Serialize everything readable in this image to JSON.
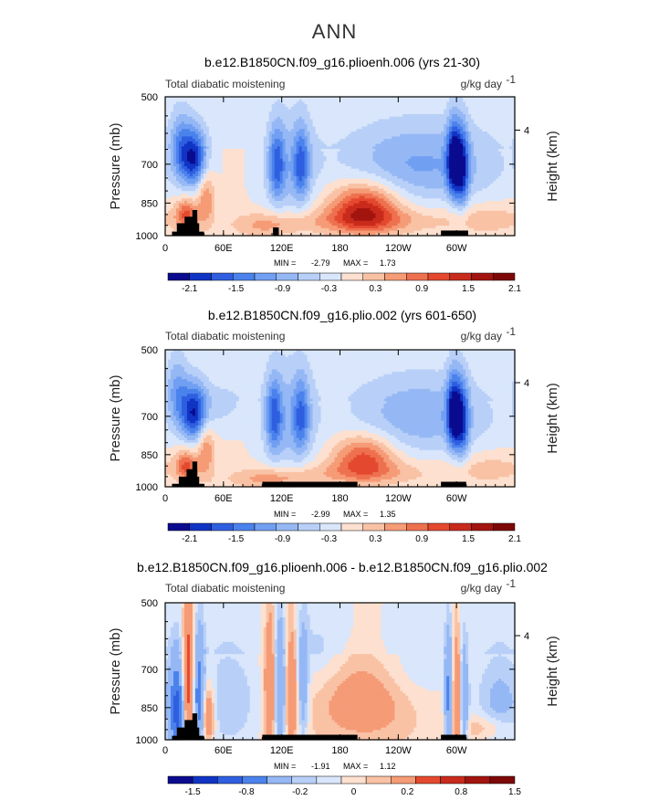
{
  "page": {
    "title": "ANN"
  },
  "chart_data": [
    {
      "type": "heatmap",
      "title": "b.e12.B1850CN.f09_g16.plioenh.006 (yrs 21-30)",
      "subtitle_left": "Total diabatic moistening",
      "units": "g/kg day",
      "units_exp": "-1",
      "ylabel": "Pressure (mb)",
      "ylabel_right": "Height (km)",
      "ylim": [
        1000,
        500
      ],
      "yticks": [
        "500",
        "700",
        "850",
        "1000"
      ],
      "yticks_right": [
        "4"
      ],
      "xlim": [
        0,
        360
      ],
      "xticks": [
        "0",
        "60E",
        "120E",
        "180",
        "120W",
        "60W"
      ],
      "min_label": "MIN =",
      "min_value": "-2.79",
      "max_label": "MAX =",
      "max_value": "1.73",
      "colorbar_levels": [
        -2.4,
        -2.1,
        -1.8,
        -1.5,
        -1.2,
        -0.9,
        -0.6,
        -0.3,
        0,
        0.3,
        0.6,
        0.9,
        1.2,
        1.5,
        1.8,
        2.1,
        2.4
      ],
      "colorbar_labels": [
        "-2.1",
        "-1.5",
        "-0.9",
        "-0.3",
        "0.3",
        "0.9",
        "1.5",
        "2.1"
      ],
      "features": [
        {
          "lon": 30,
          "p": 680,
          "value": -2.0,
          "sx": 10,
          "sp": 70
        },
        {
          "lon": 15,
          "p": 640,
          "value": -0.9,
          "sx": 8,
          "sp": 80
        },
        {
          "lon": 22,
          "p": 900,
          "value": 1.2,
          "sx": 8,
          "sp": 50
        },
        {
          "lon": 42,
          "p": 820,
          "value": 0.9,
          "sx": 6,
          "sp": 90
        },
        {
          "lon": 115,
          "p": 700,
          "value": -1.3,
          "sx": 6,
          "sp": 90
        },
        {
          "lon": 140,
          "p": 700,
          "value": -1.2,
          "sx": 6,
          "sp": 90
        },
        {
          "lon": 128,
          "p": 720,
          "value": -0.6,
          "sx": 20,
          "sp": 140
        },
        {
          "lon": 105,
          "p": 950,
          "value": 0.6,
          "sx": 25,
          "sp": 40
        },
        {
          "lon": 205,
          "p": 870,
          "value": 1.7,
          "sx": 25,
          "sp": 75
        },
        {
          "lon": 205,
          "p": 930,
          "value": 0.6,
          "sx": 60,
          "sp": 40
        },
        {
          "lon": 262,
          "p": 700,
          "value": -1.0,
          "sx": 60,
          "sp": 100
        },
        {
          "lon": 297,
          "p": 690,
          "value": -2.0,
          "sx": 5,
          "sp": 90
        },
        {
          "lon": 306,
          "p": 720,
          "value": -1.5,
          "sx": 5,
          "sp": 100
        },
        {
          "lon": 335,
          "p": 920,
          "value": 0.4,
          "sx": 30,
          "sp": 50
        }
      ],
      "topography": [
        {
          "lon0": 7,
          "lon1": 40,
          "p_top": 980
        },
        {
          "lon0": 12,
          "lon1": 35,
          "p_top": 940
        },
        {
          "lon0": 20,
          "lon1": 33,
          "p_top": 910
        },
        {
          "lon0": 28,
          "lon1": 33,
          "p_top": 880
        },
        {
          "lon0": 111,
          "lon1": 117,
          "p_top": 960
        },
        {
          "lon0": 284,
          "lon1": 312,
          "p_top": 975
        }
      ]
    },
    {
      "type": "heatmap",
      "title": "b.e12.B1850CN.f09_g16.plio.002 (yrs 601-650)",
      "subtitle_left": "Total diabatic moistening",
      "units": "g/kg day",
      "units_exp": "-1",
      "ylabel": "Pressure (mb)",
      "ylabel_right": "Height (km)",
      "ylim": [
        1000,
        500
      ],
      "yticks": [
        "500",
        "700",
        "850",
        "1000"
      ],
      "yticks_right": [
        "4"
      ],
      "xlim": [
        0,
        360
      ],
      "xticks": [
        "0",
        "60E",
        "120E",
        "180",
        "120W",
        "60W"
      ],
      "min_label": "MIN =",
      "min_value": "-2.99",
      "max_label": "MAX =",
      "max_value": "1.35",
      "colorbar_levels": [
        -2.4,
        -2.1,
        -1.8,
        -1.5,
        -1.2,
        -0.9,
        -0.6,
        -0.3,
        0,
        0.3,
        0.6,
        0.9,
        1.2,
        1.5,
        1.8,
        2.1,
        2.4
      ],
      "colorbar_labels": [
        "-2.1",
        "-1.5",
        "-0.9",
        "-0.3",
        "0.3",
        "0.9",
        "1.5",
        "2.1"
      ],
      "features": [
        {
          "lon": 30,
          "p": 690,
          "value": -2.0,
          "sx": 10,
          "sp": 70
        },
        {
          "lon": 12,
          "p": 620,
          "value": -0.9,
          "sx": 8,
          "sp": 80
        },
        {
          "lon": 22,
          "p": 900,
          "value": 1.2,
          "sx": 8,
          "sp": 50
        },
        {
          "lon": 42,
          "p": 820,
          "value": 0.9,
          "sx": 6,
          "sp": 90
        },
        {
          "lon": 60,
          "p": 660,
          "value": -0.4,
          "sx": 20,
          "sp": 60
        },
        {
          "lon": 112,
          "p": 700,
          "value": -1.3,
          "sx": 6,
          "sp": 90
        },
        {
          "lon": 140,
          "p": 700,
          "value": -1.1,
          "sx": 6,
          "sp": 90
        },
        {
          "lon": 128,
          "p": 720,
          "value": -0.7,
          "sx": 20,
          "sp": 150
        },
        {
          "lon": 110,
          "p": 960,
          "value": 0.7,
          "sx": 30,
          "sp": 35
        },
        {
          "lon": 205,
          "p": 860,
          "value": 1.3,
          "sx": 22,
          "sp": 70
        },
        {
          "lon": 205,
          "p": 930,
          "value": 0.5,
          "sx": 55,
          "sp": 40
        },
        {
          "lon": 262,
          "p": 700,
          "value": -0.9,
          "sx": 55,
          "sp": 100
        },
        {
          "lon": 297,
          "p": 690,
          "value": -2.0,
          "sx": 5,
          "sp": 90
        },
        {
          "lon": 306,
          "p": 720,
          "value": -1.4,
          "sx": 5,
          "sp": 100
        },
        {
          "lon": 335,
          "p": 910,
          "value": 0.4,
          "sx": 28,
          "sp": 50
        }
      ],
      "topography": [
        {
          "lon0": 7,
          "lon1": 40,
          "p_top": 985
        },
        {
          "lon0": 14,
          "lon1": 35,
          "p_top": 950
        },
        {
          "lon0": 22,
          "lon1": 33,
          "p_top": 915
        },
        {
          "lon0": 28,
          "lon1": 33,
          "p_top": 880
        },
        {
          "lon0": 100,
          "lon1": 198,
          "p_top": 975
        },
        {
          "lon0": 284,
          "lon1": 310,
          "p_top": 975
        }
      ]
    },
    {
      "type": "heatmap",
      "title": "b.e12.B1850CN.f09_g16.plioenh.006 - b.e12.B1850CN.f09_g16.plio.002",
      "subtitle_left": "Total diabatic moistening",
      "units": "g/kg day",
      "units_exp": "-1",
      "ylabel": "Pressure (mb)",
      "ylabel_right": "Height (km)",
      "ylim": [
        1000,
        500
      ],
      "yticks": [
        "500",
        "700",
        "850",
        "1000"
      ],
      "yticks_right": [
        "4"
      ],
      "xlim": [
        0,
        360
      ],
      "xticks": [
        "0",
        "60E",
        "120E",
        "180",
        "120W",
        "60W"
      ],
      "min_label": "MIN =",
      "min_value": "-1.91",
      "max_label": "MAX =",
      "max_value": "1.12",
      "colorbar_levels": [
        -2.0,
        -1.5,
        -1.2,
        -0.8,
        -0.5,
        -0.2,
        -0.1,
        0,
        0.1,
        0.2,
        0.5,
        0.8,
        1.2,
        1.5,
        2.0
      ],
      "colorbar_labels": [
        "-1.5",
        "-0.8",
        "-0.2",
        "0",
        "0.2",
        "0.8",
        "1.5"
      ],
      "features": [
        {
          "lon": 12,
          "p": 870,
          "value": -0.9,
          "sx": 5,
          "sp": 150
        },
        {
          "lon": 24,
          "p": 720,
          "value": 0.7,
          "sx": 4,
          "sp": 180
        },
        {
          "lon": 35,
          "p": 800,
          "value": -0.7,
          "sx": 4,
          "sp": 160
        },
        {
          "lon": 44,
          "p": 880,
          "value": 0.5,
          "sx": 5,
          "sp": 90
        },
        {
          "lon": 65,
          "p": 820,
          "value": -0.25,
          "sx": 22,
          "sp": 160
        },
        {
          "lon": 108,
          "p": 760,
          "value": 0.5,
          "sx": 4,
          "sp": 180
        },
        {
          "lon": 118,
          "p": 780,
          "value": -0.6,
          "sx": 4,
          "sp": 170
        },
        {
          "lon": 130,
          "p": 760,
          "value": 0.4,
          "sx": 4,
          "sp": 180
        },
        {
          "lon": 142,
          "p": 780,
          "value": -0.4,
          "sx": 4,
          "sp": 160
        },
        {
          "lon": 160,
          "p": 650,
          "value": -0.15,
          "sx": 20,
          "sp": 100
        },
        {
          "lon": 205,
          "p": 820,
          "value": 0.3,
          "sx": 35,
          "sp": 120
        },
        {
          "lon": 255,
          "p": 700,
          "value": -0.15,
          "sx": 30,
          "sp": 100
        },
        {
          "lon": 292,
          "p": 820,
          "value": -0.6,
          "sx": 3,
          "sp": 170
        },
        {
          "lon": 300,
          "p": 800,
          "value": 0.5,
          "sx": 3,
          "sp": 170
        },
        {
          "lon": 308,
          "p": 830,
          "value": -0.5,
          "sx": 3,
          "sp": 150
        },
        {
          "lon": 345,
          "p": 830,
          "value": -0.3,
          "sx": 18,
          "sp": 150
        },
        {
          "lon": 330,
          "p": 940,
          "value": 0.2,
          "sx": 20,
          "sp": 40
        }
      ],
      "topography": [
        {
          "lon0": 7,
          "lon1": 40,
          "p_top": 980
        },
        {
          "lon0": 12,
          "lon1": 35,
          "p_top": 940
        },
        {
          "lon0": 20,
          "lon1": 33,
          "p_top": 905
        },
        {
          "lon0": 28,
          "lon1": 33,
          "p_top": 875
        },
        {
          "lon0": 100,
          "lon1": 198,
          "p_top": 975
        },
        {
          "lon0": 284,
          "lon1": 310,
          "p_top": 975
        }
      ]
    }
  ],
  "colorbar_colors": [
    "#0b0b8f",
    "#1034c4",
    "#2f5fe0",
    "#4b82ec",
    "#719ff2",
    "#95b8f5",
    "#b8d0f8",
    "#d9e6fb",
    "#fde0cf",
    "#f9c2a5",
    "#f59b76",
    "#ee714f",
    "#e4492f",
    "#c82a1c",
    "#a2140f",
    "#7d0807"
  ],
  "colors": {
    "topography": "#000000",
    "axis": "#000000"
  }
}
